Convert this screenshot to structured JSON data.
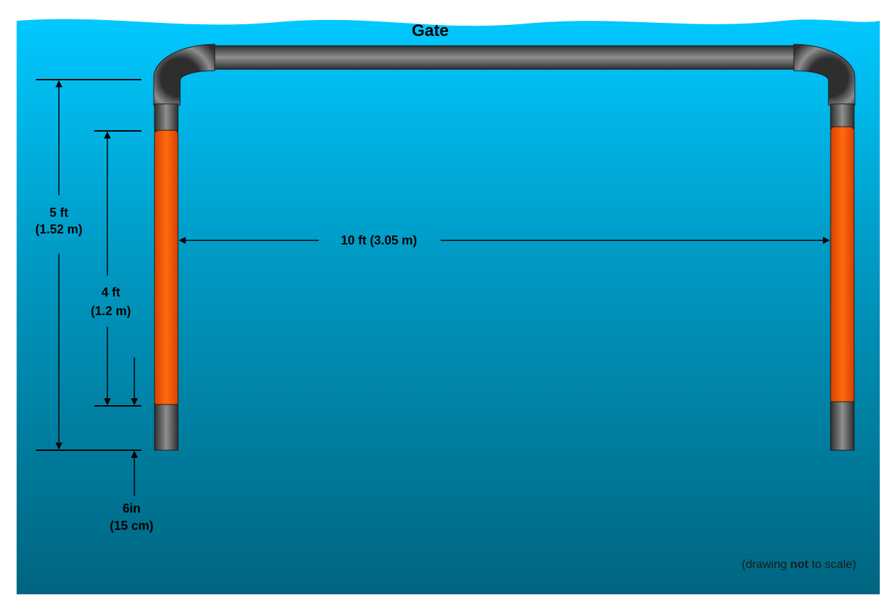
{
  "title": "Gate",
  "dimensions": {
    "total_height": {
      "line1": "5 ft",
      "line2": "(1.52 m)"
    },
    "marker_height": {
      "line1": "4 ft",
      "line2": "(1.2 m)"
    },
    "offset": {
      "line1": "6in",
      "line2": "(15 cm)"
    },
    "width": {
      "text": "10 ft (3.05 m)"
    }
  },
  "note": {
    "before": "(drawing ",
    "emphasis": "not",
    "after": " to scale)"
  },
  "colors": {
    "water_top": "#00c8ff",
    "water_bottom": "#006580",
    "pipe_dark": "#3a3a3a",
    "pipe_light": "#9a9a9a",
    "marker_orange": "#ff5500",
    "line": "#000000"
  }
}
